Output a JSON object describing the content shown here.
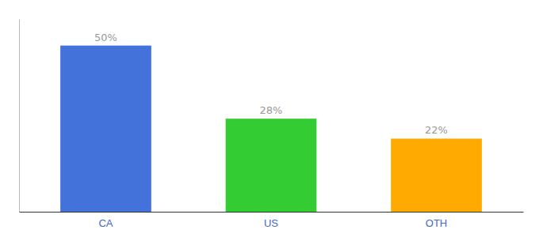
{
  "chart_data": {
    "type": "bar",
    "categories": [
      "CA",
      "US",
      "OTH"
    ],
    "values": [
      50,
      28,
      22
    ],
    "value_labels": [
      "50%",
      "28%",
      "22%"
    ],
    "colors": [
      "#4472db",
      "#33cc33",
      "#ffaa00"
    ],
    "ylim": [
      0,
      58
    ],
    "data_labels": true,
    "tick_labels": "x"
  }
}
